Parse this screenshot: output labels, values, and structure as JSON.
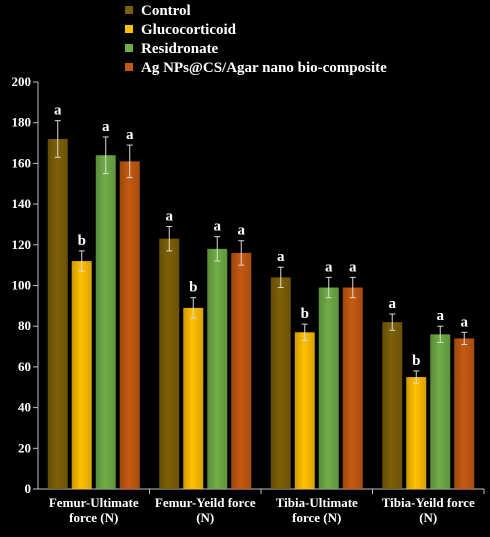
{
  "chart_data": {
    "type": "bar",
    "title": "",
    "xlabel": "",
    "ylabel": "",
    "ylim": [
      0,
      200
    ],
    "yticks": [
      0,
      20,
      40,
      60,
      80,
      100,
      120,
      140,
      160,
      180,
      200
    ],
    "grid": false,
    "legend_position": "top",
    "categories": [
      [
        "Femur-Ultimate",
        "force (N)"
      ],
      [
        "Femur-Yeild force",
        "(N)"
      ],
      [
        "Tibia-Ultimate",
        "force (N)"
      ],
      [
        "Tibia-Yeild force",
        "(N)"
      ]
    ],
    "series": [
      {
        "name": "Control",
        "color": "#7d6008",
        "values": [
          172,
          123,
          104,
          82
        ],
        "errors": [
          9,
          6,
          5,
          4
        ],
        "labels": [
          "a",
          "a",
          "a",
          "a"
        ]
      },
      {
        "name": "Glucocorticoid",
        "color": "#ffc000",
        "values": [
          112,
          89,
          77,
          55
        ],
        "errors": [
          5,
          5,
          4,
          3
        ],
        "labels": [
          "b",
          "b",
          "b",
          "b"
        ]
      },
      {
        "name": "Residronate",
        "color": "#70ad47",
        "values": [
          164,
          118,
          99,
          76
        ],
        "errors": [
          9,
          6,
          5,
          4
        ],
        "labels": [
          "a",
          "a",
          "a",
          "a"
        ]
      },
      {
        "name": "Ag NPs@CS/Agar nano bio-composite",
        "color": "#c55a11",
        "values": [
          161,
          116,
          99,
          74
        ],
        "errors": [
          8,
          6,
          5,
          3
        ],
        "labels": [
          "a",
          "a",
          "a",
          "a"
        ]
      }
    ]
  }
}
